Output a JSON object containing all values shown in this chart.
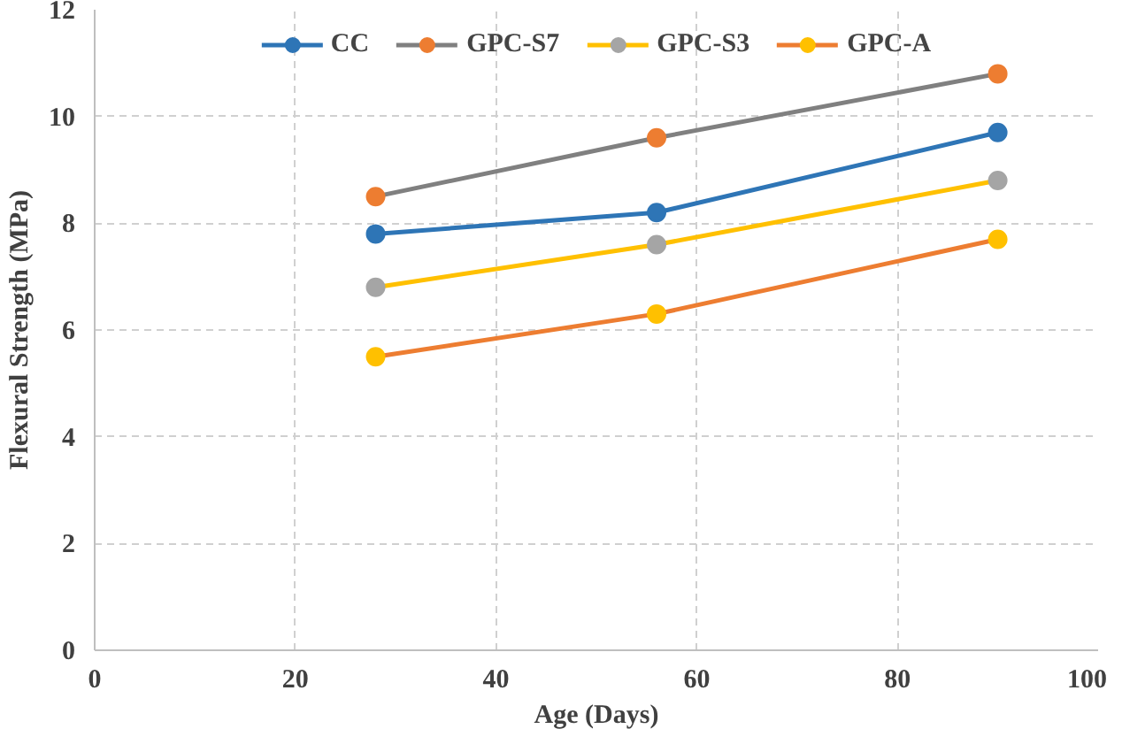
{
  "chart_data": {
    "type": "line",
    "xlabel": "Age (Days)",
    "ylabel": "Flexural Strength (MPa)",
    "x": [
      28,
      56,
      90
    ],
    "series": [
      {
        "name": "CC",
        "color": "#2e75b6",
        "colors": [
          "#2e75b6",
          "#2e75b6",
          "#2e75b6"
        ],
        "values": [
          7.8,
          8.2,
          9.7
        ]
      },
      {
        "name": "GPC-S7",
        "color": "#808080",
        "colors": [
          "#ed7d31",
          "#ed7d31",
          "#ed7d31"
        ],
        "values": [
          8.5,
          9.6,
          10.8
        ]
      },
      {
        "name": "GPC-S3",
        "color": "#ffc000",
        "colors": [
          "#a5a5a5",
          "#a5a5a5",
          "#a5a5a5"
        ],
        "values": [
          6.8,
          7.6,
          8.8
        ]
      },
      {
        "name": "GPC-A",
        "color": "#ed7d31",
        "colors": [
          "#ffc000",
          "#ffc000",
          "#ffc000"
        ],
        "values": [
          5.5,
          6.3,
          7.7
        ]
      }
    ],
    "xlim": [
      0,
      100
    ],
    "xticks": [
      0,
      20,
      40,
      60,
      80,
      100
    ],
    "ylim": [
      0,
      12
    ],
    "yticks": [
      0,
      2,
      4,
      6,
      8,
      10,
      12
    ],
    "grid": true,
    "legend": "top",
    "marker": "circle",
    "line_style": "solid"
  }
}
